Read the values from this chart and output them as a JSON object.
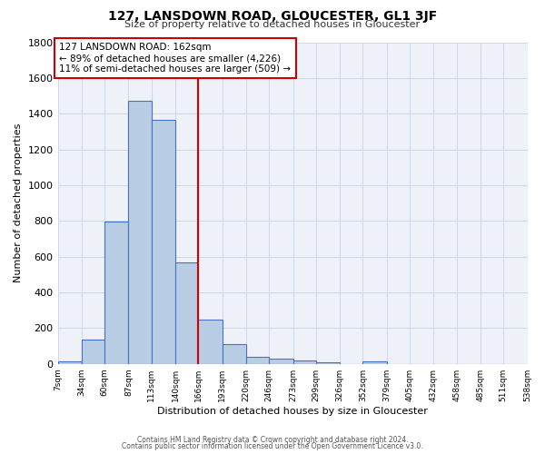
{
  "title": "127, LANSDOWN ROAD, GLOUCESTER, GL1 3JF",
  "subtitle": "Size of property relative to detached houses in Gloucester",
  "xlabel": "Distribution of detached houses by size in Gloucester",
  "ylabel": "Number of detached properties",
  "bar_color": "#b8cce4",
  "bar_edge_color": "#4472c4",
  "background_color": "#eef2f8",
  "grid_color": "#d0d8e8",
  "vline_x": 166,
  "vline_color": "#cc0000",
  "bin_edges": [
    7,
    34,
    60,
    87,
    113,
    140,
    166,
    193,
    220,
    246,
    273,
    299,
    326,
    352,
    379,
    405,
    432,
    458,
    485,
    511,
    538
  ],
  "bar_heights": [
    15,
    135,
    795,
    1470,
    1365,
    570,
    248,
    110,
    40,
    28,
    20,
    8,
    0,
    15,
    0,
    0,
    0,
    0,
    0,
    0
  ],
  "ylim": [
    0,
    1800
  ],
  "yticks": [
    0,
    200,
    400,
    600,
    800,
    1000,
    1200,
    1400,
    1600,
    1800
  ],
  "xtick_labels": [
    "7sqm",
    "34sqm",
    "60sqm",
    "87sqm",
    "113sqm",
    "140sqm",
    "166sqm",
    "193sqm",
    "220sqm",
    "246sqm",
    "273sqm",
    "299sqm",
    "326sqm",
    "352sqm",
    "379sqm",
    "405sqm",
    "432sqm",
    "458sqm",
    "485sqm",
    "511sqm",
    "538sqm"
  ],
  "annotation_title": "127 LANSDOWN ROAD: 162sqm",
  "annotation_line1": "← 89% of detached houses are smaller (4,226)",
  "annotation_line2": "11% of semi-detached houses are larger (509) →",
  "footer1": "Contains HM Land Registry data © Crown copyright and database right 2024.",
  "footer2": "Contains public sector information licensed under the Open Government Licence v3.0."
}
